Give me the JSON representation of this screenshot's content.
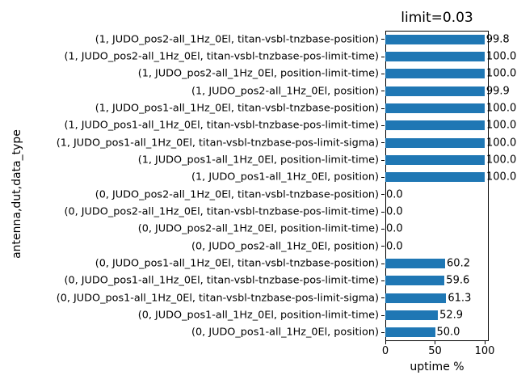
{
  "chart_data": {
    "type": "bar",
    "orientation": "horizontal",
    "title": "limit=0.03",
    "xlabel": "uptime %",
    "ylabel": "antenna,dut,data_type",
    "xlim": [
      0,
      104
    ],
    "x_ticks": [
      0,
      50,
      100
    ],
    "x_tick_labels": [
      "0",
      "50",
      "100"
    ],
    "bar_color": "#1f77b4",
    "grid": false,
    "legend": false,
    "categories": [
      "(1, JUDO_pos2-all_1Hz_0El, titan-vsbl-tnzbase-position)",
      "(1, JUDO_pos2-all_1Hz_0El, titan-vsbl-tnzbase-pos-limit-time)",
      "(1, JUDO_pos2-all_1Hz_0El, position-limit-time)",
      "(1, JUDO_pos2-all_1Hz_0El, position)",
      "(1, JUDO_pos1-all_1Hz_0El, titan-vsbl-tnzbase-position)",
      "(1, JUDO_pos1-all_1Hz_0El, titan-vsbl-tnzbase-pos-limit-time)",
      "(1, JUDO_pos1-all_1Hz_0El, titan-vsbl-tnzbase-pos-limit-sigma)",
      "(1, JUDO_pos1-all_1Hz_0El, position-limit-time)",
      "(1, JUDO_pos1-all_1Hz_0El, position)",
      "(0, JUDO_pos2-all_1Hz_0El, titan-vsbl-tnzbase-position)",
      "(0, JUDO_pos2-all_1Hz_0El, titan-vsbl-tnzbase-pos-limit-time)",
      "(0, JUDO_pos2-all_1Hz_0El, position-limit-time)",
      "(0, JUDO_pos2-all_1Hz_0El, position)",
      "(0, JUDO_pos1-all_1Hz_0El, titan-vsbl-tnzbase-position)",
      "(0, JUDO_pos1-all_1Hz_0El, titan-vsbl-tnzbase-pos-limit-time)",
      "(0, JUDO_pos1-all_1Hz_0El, titan-vsbl-tnzbase-pos-limit-sigma)",
      "(0, JUDO_pos1-all_1Hz_0El, position-limit-time)",
      "(0, JUDO_pos1-all_1Hz_0El, position)"
    ],
    "values": [
      99.8,
      100.0,
      100.0,
      99.9,
      100.0,
      100.0,
      100.0,
      100.0,
      100.0,
      0.0,
      0.0,
      0.0,
      0.0,
      60.2,
      59.6,
      61.3,
      52.9,
      50.0
    ],
    "value_labels": [
      "99.8",
      "100.0",
      "100.0",
      "99.9",
      "100.0",
      "100.0",
      "100.0",
      "100.0",
      "100.0",
      "0.0",
      "0.0",
      "0.0",
      "0.0",
      "60.2",
      "59.6",
      "61.3",
      "52.9",
      "50.0"
    ]
  }
}
